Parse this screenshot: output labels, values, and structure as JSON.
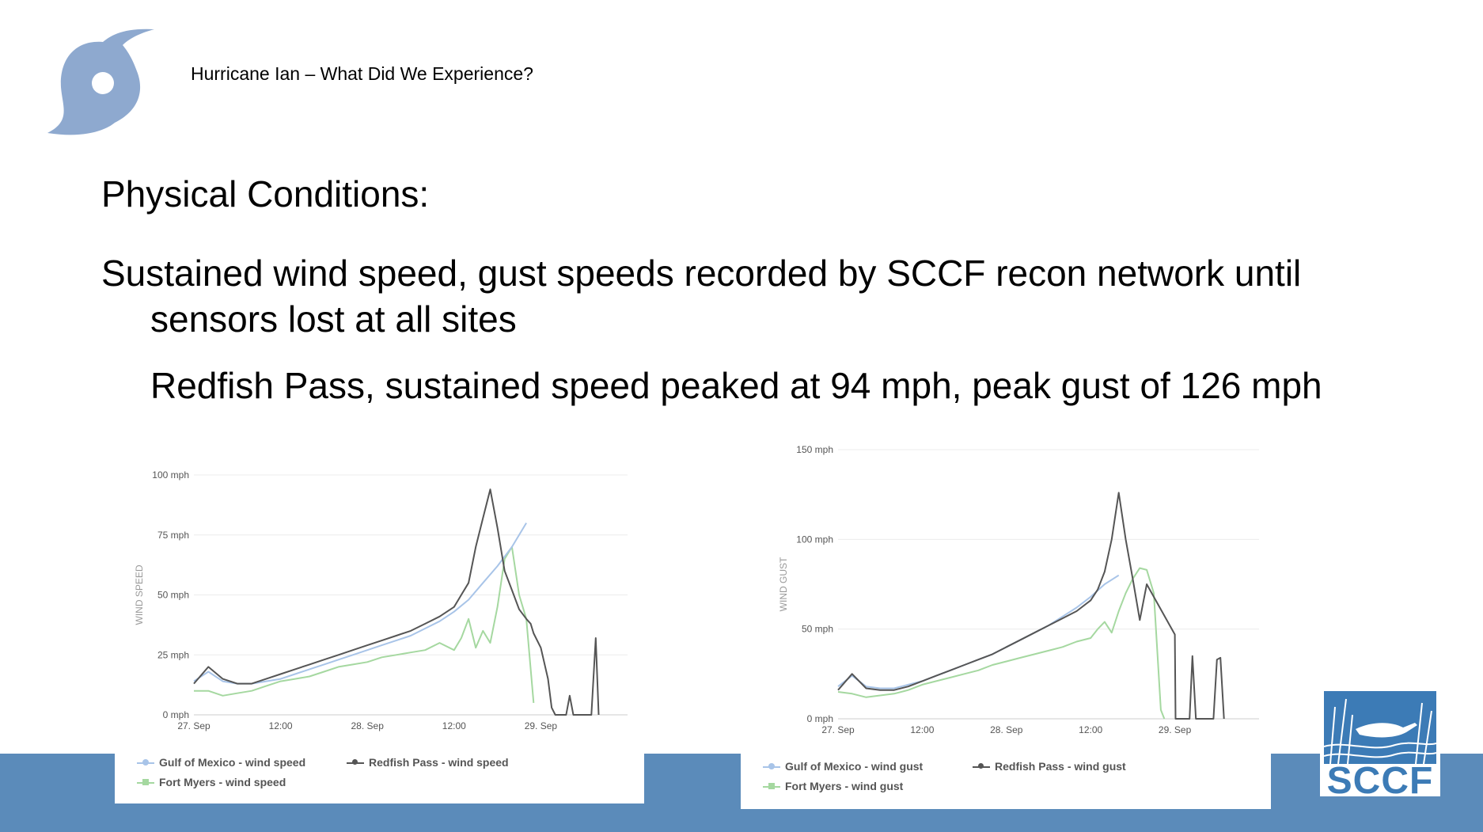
{
  "slide": {
    "subtitle": "Hurricane Ian – What Did We Experience?",
    "heading": "Physical Conditions:",
    "bullet1_line1": "Sustained wind speed, gust speeds recorded by SCCF recon network until",
    "bullet1_line2": "sensors lost at all sites",
    "bullet2": "Redfish Pass, sustained speed peaked at 94 mph, peak gust of 126 mph",
    "logo_text": "SCCF",
    "colors": {
      "footer": "#5b8bba",
      "hurricane_icon": "#8ea9cf",
      "logo_blue": "#3c7bb6"
    }
  },
  "chart_data": [
    {
      "type": "line",
      "ylabel": "WIND SPEED",
      "yticks": [
        "0 mph",
        "25 mph",
        "50 mph",
        "75 mph",
        "100 mph"
      ],
      "ylim": [
        0,
        100
      ],
      "xticks": [
        "27. Sep",
        "12:00",
        "28. Sep",
        "12:00",
        "29. Sep"
      ],
      "xlim": [
        "27. Sep 00:00",
        "29. Sep 12:00"
      ],
      "grid": true,
      "legend": "bottom",
      "series": [
        {
          "name": "Gulf of Mexico - wind speed",
          "color": "#a8c4e8",
          "x_hours": [
            0,
            2,
            4,
            6,
            8,
            10,
            12,
            14,
            16,
            18,
            20,
            22,
            24,
            26,
            28,
            30,
            32,
            34,
            36,
            38,
            40,
            42,
            44,
            46
          ],
          "values": [
            14,
            18,
            14,
            13,
            13,
            14,
            15,
            17,
            19,
            21,
            23,
            25,
            27,
            29,
            31,
            33,
            36,
            39,
            43,
            48,
            55,
            62,
            70,
            80
          ]
        },
        {
          "name": "Redfish Pass - wind speed",
          "color": "#555555",
          "x_hours": [
            0,
            2,
            4,
            6,
            8,
            10,
            12,
            14,
            16,
            18,
            20,
            22,
            24,
            26,
            28,
            30,
            32,
            34,
            36,
            37,
            38,
            39,
            40,
            41,
            42,
            43,
            44,
            45,
            46,
            46.6,
            47,
            48,
            49,
            49.5,
            50,
            51,
            51.5,
            52,
            52.5,
            53,
            53.5,
            54,
            55,
            55.6,
            56
          ],
          "values": [
            13,
            20,
            15,
            13,
            13,
            15,
            17,
            19,
            21,
            23,
            25,
            27,
            29,
            31,
            33,
            35,
            38,
            41,
            45,
            50,
            55,
            70,
            82,
            94,
            78,
            60,
            52,
            44,
            40,
            38,
            34,
            28,
            15,
            3,
            0,
            0,
            0,
            8,
            0,
            0,
            0,
            0,
            0,
            32,
            0
          ]
        },
        {
          "name": "Fort Myers - wind speed",
          "color": "#a5d8a0",
          "x_hours": [
            0,
            2,
            4,
            6,
            8,
            10,
            12,
            14,
            16,
            18,
            20,
            22,
            24,
            26,
            28,
            30,
            32,
            34,
            36,
            37,
            38,
            39,
            40,
            41,
            42,
            43,
            44,
            45,
            46,
            47
          ],
          "values": [
            10,
            10,
            8,
            9,
            10,
            12,
            14,
            15,
            16,
            18,
            20,
            21,
            22,
            24,
            25,
            26,
            27,
            30,
            27,
            32,
            40,
            28,
            35,
            30,
            45,
            65,
            70,
            50,
            40,
            5
          ]
        }
      ]
    },
    {
      "type": "line",
      "ylabel": "WIND GUST",
      "yticks": [
        "0 mph",
        "50 mph",
        "100 mph",
        "150 mph"
      ],
      "ylim": [
        0,
        150
      ],
      "xticks": [
        "27. Sep",
        "12:00",
        "28. Sep",
        "12:00",
        "29. Sep"
      ],
      "xlim": [
        "27. Sep 00:00",
        "29. Sep 12:00"
      ],
      "grid": true,
      "legend": "bottom",
      "series": [
        {
          "name": "Gulf of Mexico - wind gust",
          "color": "#a8c4e8",
          "x_hours": [
            0,
            2,
            4,
            6,
            8,
            10,
            12,
            14,
            16,
            18,
            20,
            22,
            24,
            26,
            28,
            30,
            32,
            34,
            36,
            38,
            40
          ],
          "values": [
            18,
            24,
            18,
            17,
            17,
            19,
            21,
            24,
            27,
            30,
            33,
            36,
            40,
            44,
            48,
            52,
            57,
            62,
            68,
            75,
            80
          ]
        },
        {
          "name": "Redfish Pass - wind gust",
          "color": "#555555",
          "x_hours": [
            0,
            2,
            4,
            6,
            8,
            10,
            12,
            14,
            16,
            18,
            20,
            22,
            24,
            26,
            28,
            30,
            32,
            34,
            36,
            37,
            38,
            39,
            40,
            41,
            42,
            43,
            44,
            48,
            48.1,
            48.5,
            49,
            50,
            50.1,
            50.5,
            51,
            51.5,
            52,
            53,
            53.5,
            54,
            54.5,
            55
          ],
          "values": [
            16,
            25,
            17,
            16,
            16,
            18,
            21,
            24,
            27,
            30,
            33,
            36,
            40,
            44,
            48,
            52,
            56,
            60,
            66,
            72,
            82,
            100,
            126,
            100,
            78,
            55,
            75,
            47,
            0,
            0,
            0,
            0,
            0,
            35,
            0,
            0,
            0,
            0,
            0,
            33,
            34,
            0
          ]
        },
        {
          "name": "Fort Myers - wind gust",
          "color": "#a5d8a0",
          "x_hours": [
            0,
            2,
            4,
            6,
            8,
            10,
            12,
            14,
            16,
            18,
            20,
            22,
            24,
            26,
            28,
            30,
            32,
            34,
            36,
            37,
            38,
            39,
            40,
            41,
            42,
            43,
            44,
            45,
            46,
            46.5
          ],
          "values": [
            15,
            14,
            12,
            13,
            14,
            16,
            19,
            21,
            23,
            25,
            27,
            30,
            32,
            34,
            36,
            38,
            40,
            43,
            45,
            50,
            54,
            48,
            60,
            70,
            78,
            84,
            83,
            70,
            5,
            0
          ]
        }
      ]
    }
  ]
}
